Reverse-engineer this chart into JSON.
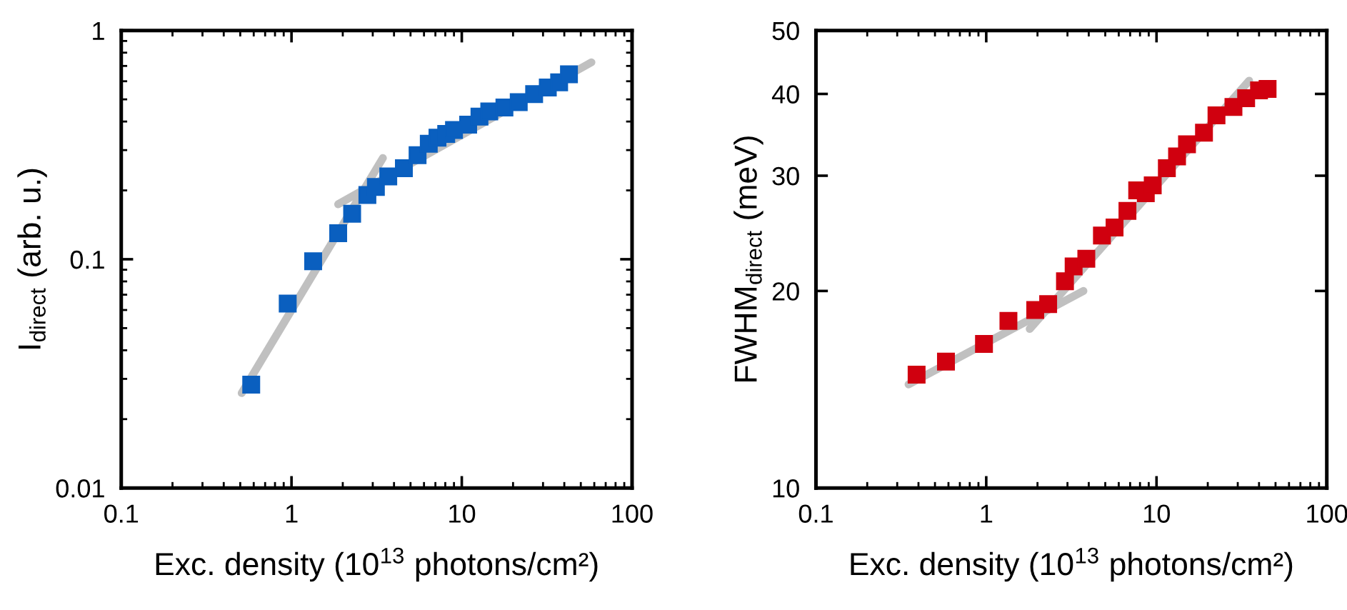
{
  "chart_data": [
    {
      "type": "scatter",
      "xlabel": "Exc. density (10$^{13}$ photons/cm²)",
      "ylabel": "I$_{direct}$ (arb. u.)",
      "log": "xy",
      "xlim": [
        0.1,
        100
      ],
      "xticks": [
        0.1,
        1,
        10,
        100
      ],
      "ylim": [
        0.01,
        1
      ],
      "yticks": [
        0.01,
        0.1,
        1
      ],
      "series": [
        {
          "type": "line",
          "color": "#c0c0c0",
          "x": [
            0.51,
            3.44
          ],
          "values": [
            0.026,
            0.277
          ]
        },
        {
          "type": "line",
          "color": "#c0c0c0",
          "x": [
            1.88,
            57.7
          ],
          "values": [
            0.174,
            0.726
          ]
        },
        {
          "color": "#0a5fbf",
          "marker": "square",
          "x": [
            0.58,
            0.95,
            1.34,
            1.88,
            2.27,
            2.79,
            3.13,
            3.7,
            4.57,
            5.5,
            6.4,
            7.2,
            8.1,
            9.0,
            10.9,
            12.7,
            14.5,
            17.8,
            21.6,
            26.6,
            32,
            37.3,
            42.6
          ],
          "values": [
            0.0283,
            0.064,
            0.098,
            0.13,
            0.158,
            0.191,
            0.207,
            0.23,
            0.25,
            0.285,
            0.32,
            0.34,
            0.353,
            0.367,
            0.388,
            0.42,
            0.443,
            0.461,
            0.486,
            0.527,
            0.563,
            0.594,
            0.644
          ]
        }
      ]
    },
    {
      "type": "scatter",
      "xlabel": "Exc. density (10$^{13}$ photons/cm²)",
      "ylabel": "FWHM$_{direct}$ (meV)",
      "log": "xy",
      "xlim": [
        0.1,
        100
      ],
      "xticks": [
        0.1,
        1,
        10,
        100
      ],
      "ylim": [
        10,
        50
      ],
      "yticks": [
        10,
        20,
        30,
        40,
        50
      ],
      "series": [
        {
          "type": "line",
          "color": "#c0c0c0",
          "x": [
            0.35,
            3.72
          ],
          "values": [
            14.4,
            20.0
          ]
        },
        {
          "type": "line",
          "color": "#c0c0c0",
          "x": [
            1.8,
            35
          ],
          "values": [
            17.5,
            41.9
          ]
        },
        {
          "color": "#d0000f",
          "marker": "square",
          "x": [
            0.39,
            0.58,
            0.97,
            1.35,
            1.94,
            2.31,
            2.9,
            3.26,
            3.87,
            4.78,
            5.67,
            6.75,
            7.7,
            8.65,
            9.5,
            11.5,
            13.2,
            15.1,
            19,
            22.5,
            28.3,
            33.6,
            40,
            44.9
          ],
          "values": [
            14.9,
            15.6,
            16.6,
            18.0,
            18.7,
            19.1,
            20.7,
            21.8,
            22.4,
            24.3,
            25.0,
            26.5,
            28.5,
            28.2,
            29.0,
            30.8,
            32.1,
            33.5,
            34.9,
            37.1,
            38.2,
            39.4,
            40.5,
            40.7
          ]
        }
      ]
    }
  ]
}
